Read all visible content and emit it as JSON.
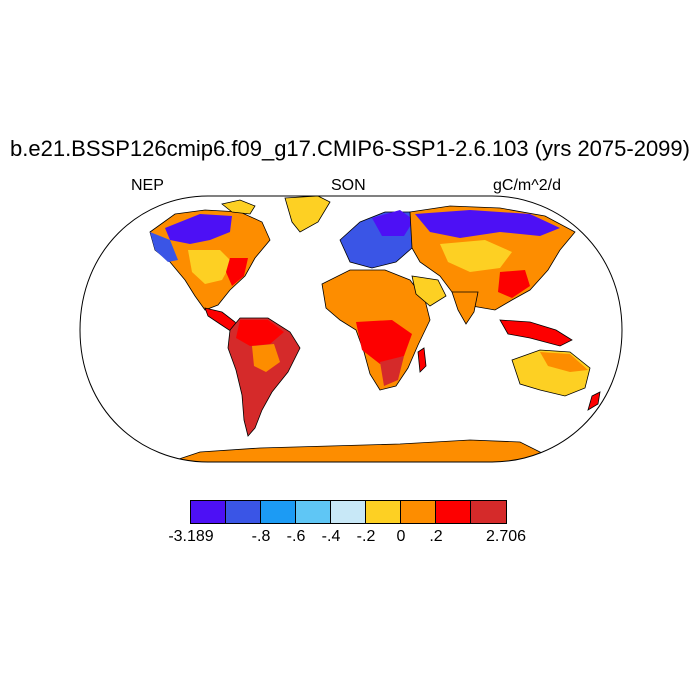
{
  "title": "b.e21.BSSP126cmip6.f09_g17.CMIP6-SSP1-2.6.103 (yrs 2075-2099)",
  "left_label": "NEP",
  "center_label": "SON",
  "right_label": "gC/m^2/d",
  "projection": "Robinson",
  "colorbar": {
    "colors": [
      "#4d10f5",
      "#3a55e6",
      "#1c9bf4",
      "#5fc6f5",
      "#c8e8f7",
      "#fdd023",
      "#fd8d00",
      "#fd0000",
      "#d52a2a"
    ],
    "labels": [
      "-3.189",
      "-.8",
      "-.6",
      "-.4",
      "-.2",
      "0",
      ".2",
      "2.706"
    ]
  },
  "colors": {
    "ocean": "#ffffff",
    "coast": "#000000",
    "antarctica": "#fd8d00"
  }
}
